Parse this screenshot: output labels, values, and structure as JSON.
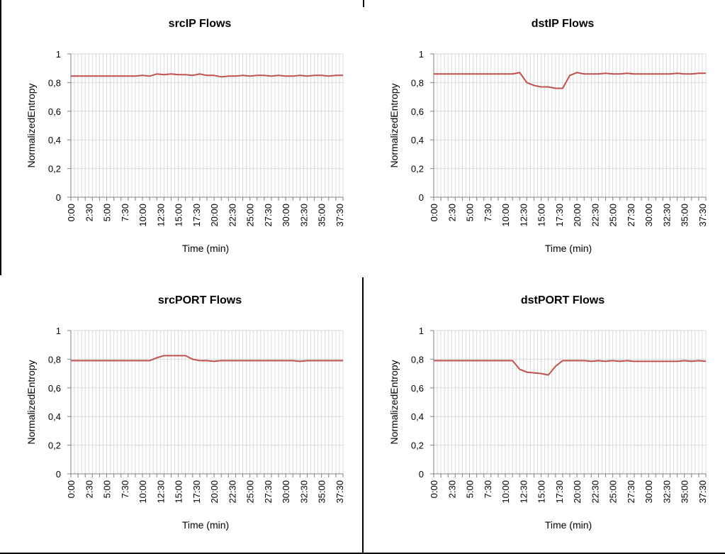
{
  "theme": {
    "line_color": "#C0504D",
    "grid_color": "#D9D9D9",
    "axis_color": "#808080"
  },
  "chart_data": [
    {
      "type": "line",
      "title": "srcIP Flows",
      "xlabel": "Time (min)",
      "ylabel": "NormalizedEntropy",
      "ylim": [
        0,
        1
      ],
      "yticks": [
        "0",
        "0,2",
        "0,4",
        "0,6",
        "0,8",
        "1"
      ],
      "xticks": [
        "0:00",
        "2:30",
        "5:00",
        "7:30",
        "10:00",
        "12:30",
        "15:00",
        "17:30",
        "20:00",
        "22:30",
        "25:00",
        "27:30",
        "30:00",
        "32:30",
        "35:00",
        "37:30"
      ],
      "x_minutes": [
        0,
        1,
        2,
        3,
        4,
        5,
        6,
        7,
        8,
        9,
        10,
        11,
        12,
        13,
        14,
        15,
        16,
        17,
        18,
        19,
        20,
        21,
        22,
        23,
        24,
        25,
        26,
        27,
        28,
        29,
        30,
        31,
        32,
        33,
        34,
        35,
        36,
        37,
        38
      ],
      "values": [
        0.845,
        0.845,
        0.845,
        0.845,
        0.845,
        0.845,
        0.845,
        0.845,
        0.845,
        0.845,
        0.85,
        0.845,
        0.86,
        0.855,
        0.86,
        0.855,
        0.855,
        0.85,
        0.86,
        0.85,
        0.85,
        0.84,
        0.845,
        0.845,
        0.85,
        0.845,
        0.85,
        0.85,
        0.845,
        0.85,
        0.845,
        0.845,
        0.85,
        0.845,
        0.85,
        0.85,
        0.845,
        0.85,
        0.85
      ],
      "grid": true,
      "legend": "none"
    },
    {
      "type": "line",
      "title": "dstIP Flows",
      "xlabel": "Time (min)",
      "ylabel": "NormalizedEntropy",
      "ylim": [
        0,
        1
      ],
      "yticks": [
        "0",
        "0,2",
        "0,4",
        "0,6",
        "0,8",
        "1"
      ],
      "xticks": [
        "0:00",
        "2:30",
        "5:00",
        "7:30",
        "10:00",
        "12:30",
        "15:00",
        "17:30",
        "20:00",
        "22:30",
        "25:00",
        "27:30",
        "30:00",
        "32:30",
        "35:00",
        "37:30"
      ],
      "x_minutes": [
        0,
        1,
        2,
        3,
        4,
        5,
        6,
        7,
        8,
        9,
        10,
        11,
        12,
        13,
        14,
        15,
        16,
        17,
        18,
        19,
        20,
        21,
        22,
        23,
        24,
        25,
        26,
        27,
        28,
        29,
        30,
        31,
        32,
        33,
        34,
        35,
        36,
        37,
        38
      ],
      "values": [
        0.86,
        0.86,
        0.86,
        0.86,
        0.86,
        0.86,
        0.86,
        0.86,
        0.86,
        0.86,
        0.86,
        0.86,
        0.87,
        0.8,
        0.78,
        0.77,
        0.77,
        0.76,
        0.76,
        0.85,
        0.87,
        0.86,
        0.86,
        0.86,
        0.865,
        0.86,
        0.86,
        0.865,
        0.86,
        0.86,
        0.86,
        0.86,
        0.86,
        0.86,
        0.865,
        0.86,
        0.86,
        0.865,
        0.865
      ],
      "grid": true,
      "legend": "none"
    },
    {
      "type": "line",
      "title": "srcPORT Flows",
      "xlabel": "Time (min)",
      "ylabel": "NormalizedEntropy",
      "ylim": [
        0,
        1
      ],
      "yticks": [
        "0",
        "0,2",
        "0,4",
        "0,6",
        "0,8",
        "1"
      ],
      "xticks": [
        "0:00",
        "2:30",
        "5:00",
        "7:30",
        "10:00",
        "12:30",
        "15:00",
        "17:30",
        "20:00",
        "22:30",
        "25:00",
        "27:30",
        "30:00",
        "32:30",
        "35:00",
        "37:30"
      ],
      "x_minutes": [
        0,
        1,
        2,
        3,
        4,
        5,
        6,
        7,
        8,
        9,
        10,
        11,
        12,
        13,
        14,
        15,
        16,
        17,
        18,
        19,
        20,
        21,
        22,
        23,
        24,
        25,
        26,
        27,
        28,
        29,
        30,
        31,
        32,
        33,
        34,
        35,
        36,
        37,
        38
      ],
      "values": [
        0.79,
        0.79,
        0.79,
        0.79,
        0.79,
        0.79,
        0.79,
        0.79,
        0.79,
        0.79,
        0.79,
        0.79,
        0.81,
        0.825,
        0.825,
        0.825,
        0.825,
        0.8,
        0.79,
        0.79,
        0.785,
        0.79,
        0.79,
        0.79,
        0.79,
        0.79,
        0.79,
        0.79,
        0.79,
        0.79,
        0.79,
        0.79,
        0.785,
        0.79,
        0.79,
        0.79,
        0.79,
        0.79,
        0.79
      ],
      "grid": true,
      "legend": "none"
    },
    {
      "type": "line",
      "title": "dstPORT Flows",
      "xlabel": "Time (min)",
      "ylabel": "NormalizedEntropy",
      "ylim": [
        0,
        1
      ],
      "yticks": [
        "0",
        "0,2",
        "0,4",
        "0,6",
        "0,8",
        "1"
      ],
      "xticks": [
        "0:00",
        "2:30",
        "5:00",
        "7:30",
        "10:00",
        "12:30",
        "15:00",
        "17:30",
        "20:00",
        "22:30",
        "25:00",
        "27:30",
        "30:00",
        "32:30",
        "35:00",
        "37:30"
      ],
      "x_minutes": [
        0,
        1,
        2,
        3,
        4,
        5,
        6,
        7,
        8,
        9,
        10,
        11,
        12,
        13,
        14,
        15,
        16,
        17,
        18,
        19,
        20,
        21,
        22,
        23,
        24,
        25,
        26,
        27,
        28,
        29,
        30,
        31,
        32,
        33,
        34,
        35,
        36,
        37,
        38
      ],
      "values": [
        0.79,
        0.79,
        0.79,
        0.79,
        0.79,
        0.79,
        0.79,
        0.79,
        0.79,
        0.79,
        0.79,
        0.79,
        0.73,
        0.71,
        0.705,
        0.7,
        0.69,
        0.75,
        0.79,
        0.79,
        0.79,
        0.79,
        0.785,
        0.79,
        0.785,
        0.79,
        0.785,
        0.79,
        0.785,
        0.785,
        0.785,
        0.785,
        0.785,
        0.785,
        0.785,
        0.79,
        0.785,
        0.79,
        0.785
      ],
      "grid": true,
      "legend": "none"
    }
  ]
}
